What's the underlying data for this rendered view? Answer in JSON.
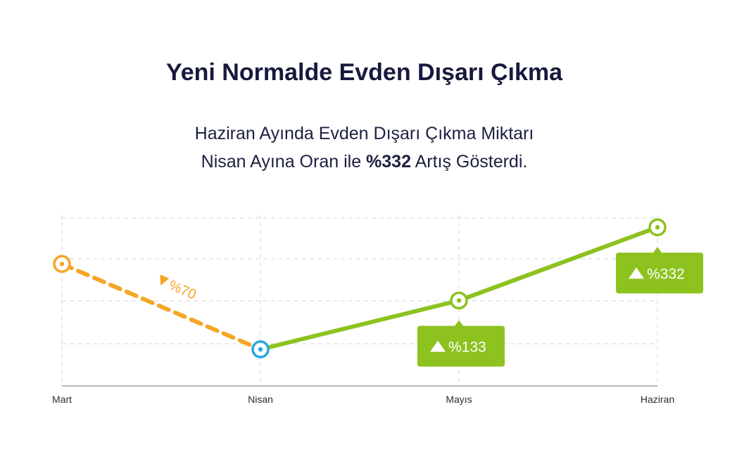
{
  "header": {
    "title": "Yeni Normalde Evden Dışarı Çıkma",
    "subtitle_line1": "Haziran Ayında Evden Dışarı Çıkma Miktarı",
    "subtitle_line2_pre": "Nisan Ayına Oran ile ",
    "subtitle_line2_bold": "%332",
    "subtitle_line2_post": " Artış Gösterdi."
  },
  "chart_data": {
    "type": "line",
    "categories": [
      "Mart",
      "Nisan",
      "Mayıs",
      "Haziran"
    ],
    "series": [
      {
        "values": [
          100,
          30,
          null,
          null
        ],
        "color": "#f5a623",
        "style": "dashed"
      },
      {
        "values": [
          null,
          30,
          70,
          130
        ],
        "color": "#8dc21f",
        "style": "solid"
      }
    ],
    "point_colors": [
      "#f5a623",
      "#29a8e0",
      "#8dc21f",
      "#8dc21f"
    ],
    "ylim": [
      0,
      140
    ],
    "grid": true,
    "annotations": [
      {
        "category": "Nisan",
        "text": "%70",
        "direction": "down",
        "color": "#f5a623"
      },
      {
        "category": "Mayıs",
        "text": "%133",
        "direction": "up",
        "color": "#8dc21f"
      },
      {
        "category": "Haziran",
        "text": "%332",
        "direction": "up",
        "color": "#8dc21f"
      }
    ]
  }
}
